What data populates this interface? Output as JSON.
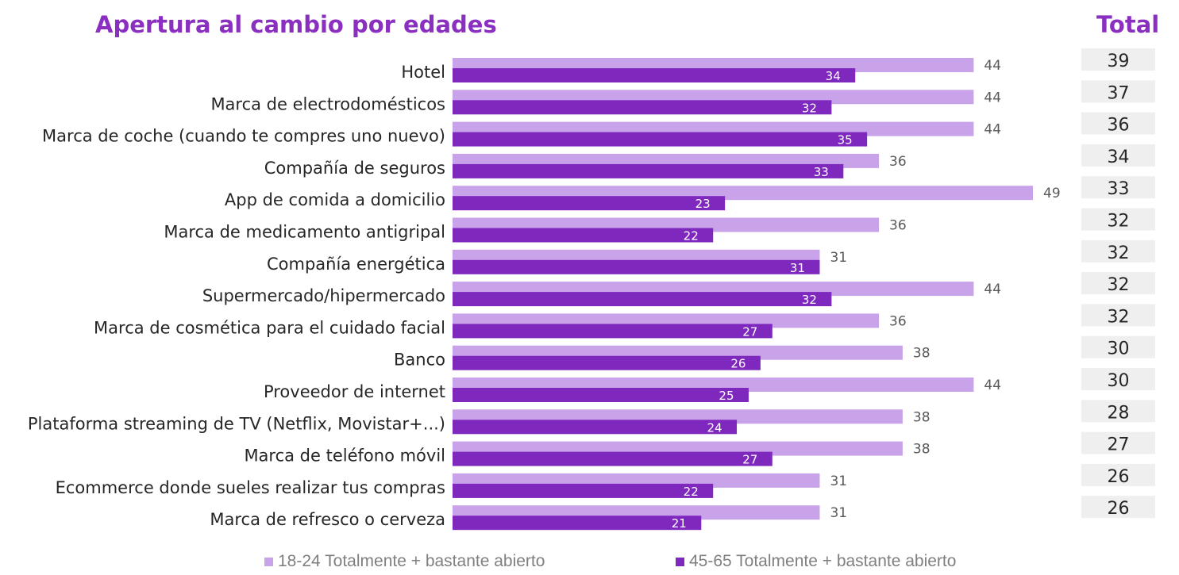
{
  "chart_data": {
    "type": "bar",
    "title": "Apertura al cambio por edades",
    "total_header": "Total",
    "categories": [
      "Hotel",
      "Marca de electrodomésticos",
      "Marca de coche (cuando te compres uno nuevo)",
      "Compañía de seguros",
      "App de comida a domicilio",
      "Marca de medicamento antigripal",
      "Compañía energética",
      "Supermercado/hipermercado",
      "Marca de cosmética para el cuidado facial",
      "Banco",
      "Proveedor de internet",
      "Plataforma streaming de TV (Netflix, Movistar+...)",
      "Marca de teléfono móvil",
      "Ecommerce donde sueles realizar tus compras",
      "Marca de refresco o cerveza"
    ],
    "series": [
      {
        "name": "18-24 Totalmente + bastante abierto",
        "color": "#c9a3ea",
        "values": [
          44,
          44,
          44,
          36,
          49,
          36,
          31,
          44,
          36,
          38,
          44,
          38,
          38,
          31,
          31
        ]
      },
      {
        "name": "45-65 Totalmente + bastante abierto",
        "color": "#7f28bd",
        "values": [
          34,
          32,
          35,
          33,
          23,
          22,
          31,
          32,
          27,
          26,
          25,
          24,
          27,
          22,
          21
        ]
      }
    ],
    "totals": [
      39,
      37,
      36,
      34,
      33,
      32,
      32,
      32,
      32,
      30,
      30,
      28,
      27,
      26,
      26
    ],
    "xlim": [
      0,
      52
    ],
    "orientation": "horizontal",
    "legend": "bottom"
  },
  "colors": {
    "title": "#8a2fc0",
    "young": "#c9a3ea",
    "old": "#7f28bd",
    "total_box": "#efefef",
    "label": "#262626",
    "value_label": "#595959"
  }
}
